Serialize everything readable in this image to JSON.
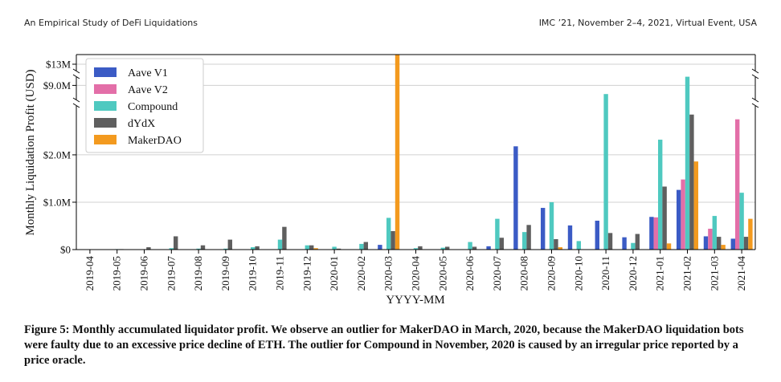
{
  "header": {
    "left": "An Empirical Study of DeFi Liquidations",
    "right": "IMC ’21, November 2–4, 2021, Virtual Event, USA"
  },
  "chart_data": {
    "type": "bar",
    "x_label": "YYYY-MM",
    "y_label": "Monthly Liquidation Profit (USD)",
    "categories": [
      "2019-04",
      "2019-05",
      "2019-06",
      "2019-07",
      "2019-08",
      "2019-09",
      "2019-10",
      "2019-11",
      "2019-12",
      "2020-01",
      "2020-02",
      "2020-03",
      "2020-04",
      "2020-05",
      "2020-06",
      "2020-07",
      "2020-08",
      "2020-09",
      "2020-10",
      "2020-11",
      "2020-12",
      "2021-01",
      "2021-02",
      "2021-03",
      "2021-04"
    ],
    "series": [
      {
        "name": "Aave V1",
        "color": "#3b5bc5",
        "values": [
          0,
          0,
          0,
          0,
          0,
          0,
          0,
          0,
          0,
          0,
          0,
          100000,
          0,
          0,
          0,
          70000,
          2180000,
          880000,
          510000,
          610000,
          260000,
          690000,
          1260000,
          280000,
          230000
        ]
      },
      {
        "name": "Aave V2",
        "color": "#e36fa8",
        "values": [
          0,
          0,
          0,
          0,
          0,
          0,
          0,
          0,
          0,
          0,
          0,
          0,
          0,
          0,
          0,
          0,
          0,
          0,
          0,
          0,
          0,
          680000,
          1480000,
          440000,
          2750000
        ]
      },
      {
        "name": "Compound",
        "color": "#4fc9c0",
        "values": [
          0,
          10000,
          0,
          30000,
          20000,
          20000,
          50000,
          210000,
          90000,
          60000,
          120000,
          670000,
          30000,
          40000,
          160000,
          650000,
          370000,
          1000000,
          180000,
          8700000,
          140000,
          2320000,
          9300000,
          710000,
          1200000
        ]
      },
      {
        "name": "dYdX",
        "color": "#5f5f5f",
        "values": [
          0,
          10000,
          50000,
          280000,
          90000,
          210000,
          70000,
          480000,
          90000,
          20000,
          160000,
          390000,
          70000,
          60000,
          60000,
          250000,
          520000,
          220000,
          0,
          350000,
          330000,
          1330000,
          2850000,
          270000,
          270000
        ]
      },
      {
        "name": "MakerDAO",
        "color": "#f39a1f",
        "values": [
          0,
          0,
          0,
          0,
          0,
          0,
          0,
          0,
          30000,
          0,
          0,
          13300000,
          0,
          0,
          0,
          0,
          0,
          50000,
          0,
          0,
          0,
          130000,
          1860000,
          100000,
          650000
        ]
      }
    ],
    "ylim": [
      0,
      13300000
    ],
    "y_breaks": [
      [
        3100000,
        8400000
      ],
      [
        9400000,
        12700000
      ]
    ],
    "yticks": [
      {
        "value": 0,
        "label": "$0"
      },
      {
        "value": 1000000,
        "label": "$1.0M"
      },
      {
        "value": 2000000,
        "label": "$2.0M"
      },
      {
        "value": 9000000,
        "label": "$9.0M"
      },
      {
        "value": 13000000,
        "label": "$13M"
      }
    ],
    "grid": true,
    "legend": "upper left"
  },
  "caption": "Figure 5: Monthly accumulated liquidator profit. We observe an outlier for MakerDAO in March, 2020, because the MakerDAO liquidation bots were faulty due to an excessive price decline of ETH. The outlier for Compound in November, 2020 is caused by an irregular price reported by a price oracle."
}
